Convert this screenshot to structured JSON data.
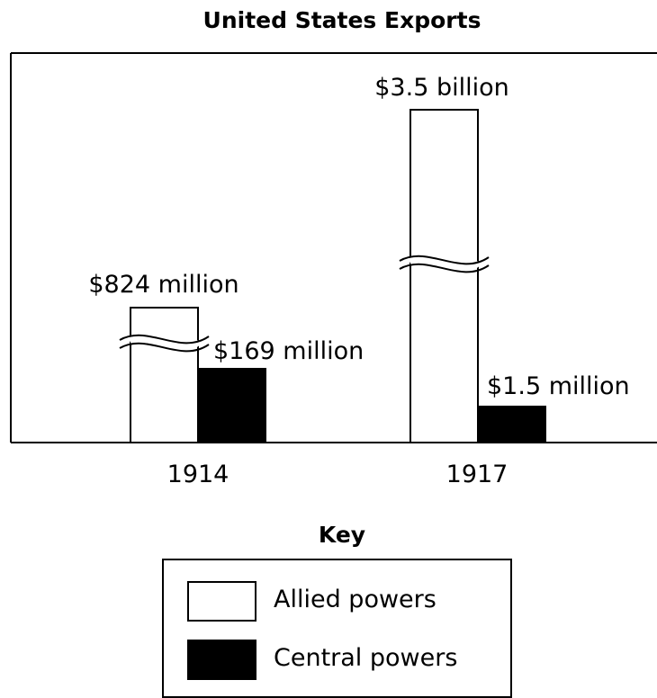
{
  "chart_data": {
    "type": "bar",
    "title": "United States Exports",
    "categories": [
      "1914",
      "1917"
    ],
    "series": [
      {
        "name": "Allied powers",
        "values": [
          824,
          3500
        ],
        "labels": [
          "$824 million",
          "$3.5 billion"
        ],
        "color": "#ffffff"
      },
      {
        "name": "Central powers",
        "values": [
          169,
          1.5
        ],
        "labels": [
          "$169 million",
          "$1.5 million"
        ],
        "color": "#000000"
      }
    ],
    "units": "millions of dollars",
    "axis_break_on": [
      "Allied powers"
    ],
    "grid": false,
    "legend": {
      "title": "Key",
      "placement": "bottom"
    }
  }
}
